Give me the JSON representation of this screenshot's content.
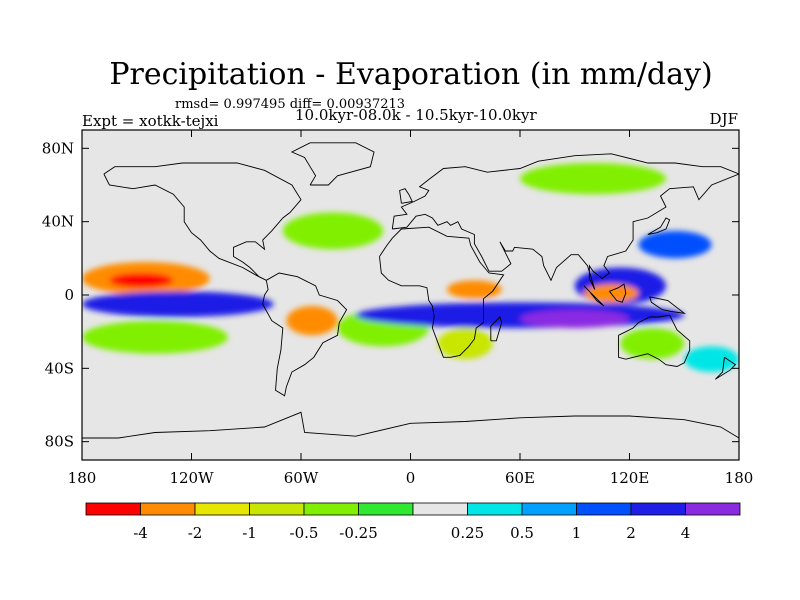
{
  "header": {
    "title": "Precipitation - Evaporation (in mm/day)",
    "stats": "rmsd= 0.997495 diff= 0.00937213",
    "experiment": "Expt = xotkk-tejxi",
    "period": "10.0kyr-08.0k - 10.5kyr-10.0kyr",
    "season": "DJF"
  },
  "map": {
    "projection": "cylindrical-equidistant",
    "lon_range": [
      -180,
      180
    ],
    "lat_range": [
      -90,
      90
    ],
    "background_color": "#e6e6e6",
    "coastline_color": "#000000",
    "x_ticks": [
      {
        "lon": -180,
        "label": "180"
      },
      {
        "lon": -120,
        "label": "120W"
      },
      {
        "lon": -60,
        "label": "60W"
      },
      {
        "lon": 0,
        "label": "0"
      },
      {
        "lon": 60,
        "label": "60E"
      },
      {
        "lon": 120,
        "label": "120E"
      },
      {
        "lon": 180,
        "label": "180"
      }
    ],
    "y_ticks": [
      {
        "lat": 80,
        "label": "80N"
      },
      {
        "lat": 40,
        "label": "40N"
      },
      {
        "lat": 0,
        "label": "0"
      },
      {
        "lat": -40,
        "label": "40S"
      },
      {
        "lat": -80,
        "label": "80S"
      }
    ],
    "features": [
      {
        "name": "central-pacific-dry-band",
        "lon": [
          -180,
          -110
        ],
        "lat": [
          0,
          18
        ],
        "level": 1
      },
      {
        "name": "central-pacific-dry-core",
        "lon": [
          -165,
          -130
        ],
        "lat": [
          4,
          12
        ],
        "level": 0
      },
      {
        "name": "pacific-wet-band",
        "lon": [
          -180,
          -75
        ],
        "lat": [
          -12,
          2
        ],
        "level": 10
      },
      {
        "name": "south-pacific-green",
        "lon": [
          -180,
          -100
        ],
        "lat": [
          -32,
          -14
        ],
        "level": 4
      },
      {
        "name": "amazon-dry",
        "lon": [
          -68,
          -40
        ],
        "lat": [
          -22,
          -6
        ],
        "level": 1
      },
      {
        "name": "south-atlantic-green",
        "lon": [
          -40,
          10
        ],
        "lat": [
          -28,
          -8
        ],
        "level": 4
      },
      {
        "name": "atlantic-indian-wet-band",
        "lon": [
          -30,
          150
        ],
        "lat": [
          -18,
          -4
        ],
        "level": 10
      },
      {
        "name": "indian-ocean-purple",
        "lon": [
          60,
          120
        ],
        "lat": [
          -18,
          -8
        ],
        "level": 11
      },
      {
        "name": "west-africa-dry",
        "lon": [
          20,
          50
        ],
        "lat": [
          -2,
          8
        ],
        "level": 1
      },
      {
        "name": "maritime-continent-wet",
        "lon": [
          90,
          140
        ],
        "lat": [
          -5,
          15
        ],
        "level": 10
      },
      {
        "name": "maritime-continent-dry",
        "lon": [
          95,
          125
        ],
        "lat": [
          -4,
          6
        ],
        "level": 1
      },
      {
        "name": "north-pacific-blue",
        "lon": [
          125,
          165
        ],
        "lat": [
          20,
          35
        ],
        "level": 9
      },
      {
        "name": "north-atlantic-green",
        "lon": [
          -70,
          -15
        ],
        "lat": [
          25,
          45
        ],
        "level": 4
      },
      {
        "name": "siberia-green",
        "lon": [
          60,
          140
        ],
        "lat": [
          55,
          72
        ],
        "level": 4
      },
      {
        "name": "australia-green",
        "lon": [
          115,
          150
        ],
        "lat": [
          -35,
          -18
        ],
        "level": 4
      },
      {
        "name": "south-africa-green",
        "lon": [
          15,
          45
        ],
        "lat": [
          -35,
          -18
        ],
        "level": 3
      },
      {
        "name": "southern-ocean-cyan",
        "lon": [
          150,
          180
        ],
        "lat": [
          -42,
          -28
        ],
        "level": 7
      }
    ]
  },
  "colorbar": {
    "colors": [
      "#ff0000",
      "#ff8c00",
      "#e6e600",
      "#c8e600",
      "#80f000",
      "#30e830",
      "#e6e6e6",
      "#00e6e6",
      "#00a0ff",
      "#0050ff",
      "#1e1ee6",
      "#8a2be2"
    ],
    "labels": [
      "-4",
      "-2",
      "-1",
      "-0.5",
      "-0.25",
      "0.25",
      "0.5",
      "1",
      "2",
      "4"
    ]
  }
}
